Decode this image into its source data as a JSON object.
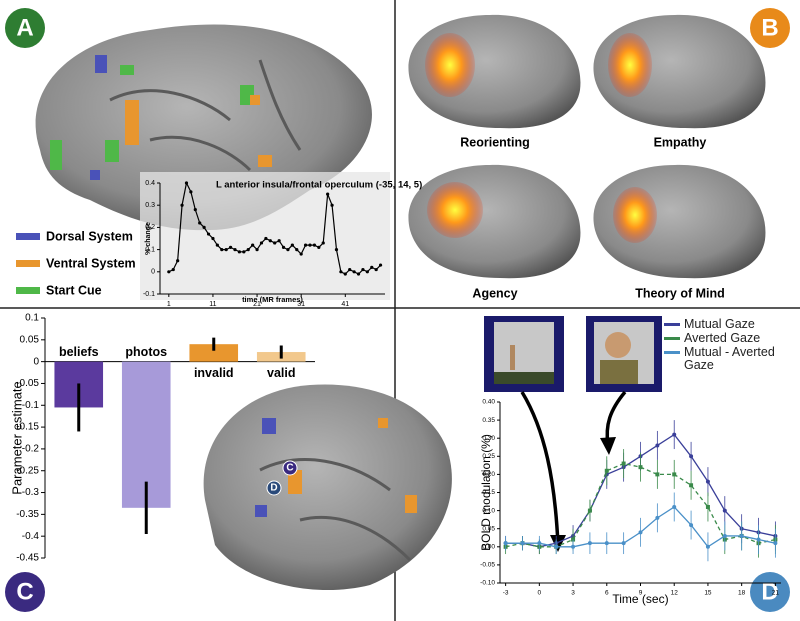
{
  "panels": {
    "letters": [
      "A",
      "B",
      "C",
      "D"
    ],
    "a_legend": [
      "Dorsal System",
      "Ventral System",
      "Start Cue"
    ],
    "b_captions": [
      "Reorienting",
      "Empathy",
      "Agency",
      "Theory of Mind"
    ],
    "c_regions": [
      "C",
      "D"
    ]
  },
  "chart_data": [
    {
      "type": "line",
      "title": "L anterior insula/frontal operculum (-35, 14, 5)",
      "y_label": "% change",
      "x_label": "time (MR frames)",
      "x": [
        1,
        2,
        3,
        4,
        5,
        6,
        7,
        8,
        9,
        10,
        11,
        12,
        13,
        14,
        15,
        16,
        17,
        18,
        19,
        20,
        21,
        22,
        23,
        24,
        25,
        26,
        27,
        28,
        29,
        30,
        31,
        32,
        33,
        34,
        35,
        36,
        37,
        38,
        39,
        40,
        41,
        42,
        43,
        44,
        45,
        46,
        47,
        48,
        49
      ],
      "values": [
        0,
        0.01,
        0.05,
        0.3,
        0.4,
        0.36,
        0.28,
        0.22,
        0.2,
        0.17,
        0.15,
        0.12,
        0.1,
        0.1,
        0.11,
        0.1,
        0.09,
        0.09,
        0.1,
        0.12,
        0.1,
        0.13,
        0.15,
        0.14,
        0.13,
        0.14,
        0.11,
        0.1,
        0.12,
        0.1,
        0.08,
        0.12,
        0.12,
        0.12,
        0.11,
        0.13,
        0.35,
        0.3,
        0.1,
        0,
        -0.01,
        0.01,
        0,
        -0.01,
        0.01,
        0,
        0.02,
        0.01,
        0.03
      ],
      "color": "#000000",
      "xlim": [
        -1,
        50
      ],
      "ylim": [
        -0.1,
        0.4
      ],
      "xticks": [
        1,
        11,
        21,
        31,
        41
      ],
      "yticks": [
        -0.1,
        0,
        0.1,
        0.2,
        0.3,
        0.4
      ]
    },
    {
      "type": "bar",
      "y_label": "Parameter estimate",
      "categories": [
        "beliefs",
        "photos",
        "invalid",
        "valid"
      ],
      "values": [
        -0.105,
        -0.335,
        0.04,
        0.022
      ],
      "errors": [
        0.055,
        0.06,
        0.015,
        0.015
      ],
      "colors": [
        "#5b3a9e",
        "#a79ad9",
        "#e8962e",
        "#f2c88c"
      ],
      "ylim": [
        -0.45,
        0.1
      ],
      "yticks": [
        0.1,
        0.05,
        0,
        -0.05,
        -0.1,
        -0.15,
        -0.2,
        -0.25,
        -0.3,
        -0.35,
        -0.4,
        -0.45
      ]
    },
    {
      "type": "line",
      "x_label": "Time (sec)",
      "y_label": "BOLD modulation (%)",
      "x": [
        -3,
        -1.5,
        0,
        1.5,
        3,
        4.5,
        6,
        7.5,
        9,
        10.5,
        12,
        13.5,
        15,
        16.5,
        18,
        19.5,
        21
      ],
      "series": [
        {
          "name": "Mutual Gaze",
          "color": "#3a3f99",
          "values": [
            0.01,
            0.01,
            0,
            0.01,
            0.03,
            0.1,
            0.2,
            0.22,
            0.25,
            0.28,
            0.31,
            0.25,
            0.18,
            0.1,
            0.05,
            0.04,
            0.03
          ],
          "errors": [
            0.02,
            0.02,
            0.02,
            0.02,
            0.03,
            0.03,
            0.04,
            0.04,
            0.04,
            0.04,
            0.04,
            0.04,
            0.04,
            0.04,
            0.04,
            0.04,
            0.04
          ]
        },
        {
          "name": "Averted Gaze",
          "color": "#3a8a4a",
          "dashed": true,
          "values": [
            0,
            0.01,
            0,
            0,
            0.02,
            0.1,
            0.21,
            0.23,
            0.22,
            0.2,
            0.2,
            0.17,
            0.11,
            0.02,
            0.03,
            0.01,
            0.02
          ],
          "errors": [
            0.02,
            0.02,
            0.02,
            0.02,
            0.03,
            0.03,
            0.04,
            0.04,
            0.04,
            0.04,
            0.04,
            0.04,
            0.04,
            0.04,
            0.04,
            0.04,
            0.04
          ]
        },
        {
          "name": "Mutual - Averted Gaze",
          "color": "#4a90c8",
          "values": [
            0.01,
            0.01,
            0.01,
            0,
            0,
            0.01,
            0.01,
            0.01,
            0.04,
            0.08,
            0.11,
            0.06,
            0,
            0.03,
            0.03,
            0.02,
            0.01
          ],
          "errors": [
            0.02,
            0.02,
            0.02,
            0.02,
            0.02,
            0.03,
            0.03,
            0.03,
            0.04,
            0.04,
            0.04,
            0.04,
            0.04,
            0.04,
            0.04,
            0.04,
            0.04
          ]
        }
      ],
      "xlim": [
        -3.5,
        21.5
      ],
      "ylim": [
        -0.1,
        0.4
      ],
      "xticks": [
        -3,
        0,
        3,
        6,
        9,
        12,
        15,
        18,
        21
      ],
      "yticks": [
        {
          "value": -0.1,
          "label": "-0.10"
        },
        {
          "value": -0.05,
          "label": "-0.05"
        },
        {
          "value": 0,
          "label": "0.00"
        },
        {
          "value": 0.05,
          "label": "0.05"
        },
        {
          "value": 0.1,
          "label": "0.10"
        },
        {
          "value": 0.15,
          "label": "0.15"
        },
        {
          "value": 0.2,
          "label": "0.20"
        },
        {
          "value": 0.25,
          "label": "0.25"
        },
        {
          "value": 0.3,
          "label": "0.30"
        },
        {
          "value": 0.35,
          "label": "0.35"
        },
        {
          "value": 0.4,
          "label": "0.40"
        }
      ]
    }
  ]
}
